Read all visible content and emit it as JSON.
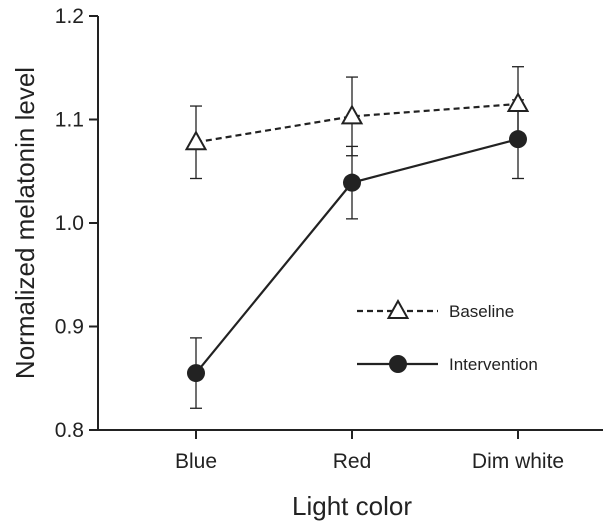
{
  "chart_data": {
    "type": "line",
    "categories": [
      "Blue",
      "Red",
      "Dim white"
    ],
    "xlabel": "Light color",
    "ylabel": "Normalized melatonin level",
    "ylim": [
      0.8,
      1.2
    ],
    "yticks": [
      "0.8",
      "0.9",
      "1.0",
      "1.1",
      "1.2"
    ],
    "grid": false,
    "legend_position": "center-right",
    "series": [
      {
        "name": "Baseline",
        "marker": "open-triangle",
        "line_style": "dashed",
        "color": "#222222",
        "values": [
          1.078,
          1.103,
          1.115
        ],
        "error": [
          0.035,
          0.038,
          0.036
        ]
      },
      {
        "name": "Intervention",
        "marker": "filled-circle",
        "line_style": "solid",
        "color": "#222222",
        "values": [
          0.855,
          1.039,
          1.081
        ],
        "error": [
          0.034,
          0.035,
          0.038
        ]
      }
    ]
  }
}
